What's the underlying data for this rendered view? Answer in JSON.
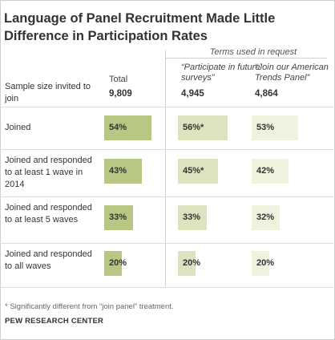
{
  "title": "Language of Panel Recruitment Made Little Difference in Participation Rates",
  "group_header": "Terms used in request",
  "col_total": "Total",
  "col_participate": "“Participate in future surveys”",
  "col_join": "“Join our American Trends Panel”",
  "sample_label": "Sample size invited to join",
  "sample": {
    "total": "9,809",
    "participate": "4,945",
    "join": "4,864"
  },
  "note": "* Significantly different from “join panel” treatment.",
  "source": "PEW RESEARCH CENTER",
  "colors": {
    "total": "#b8c784",
    "participate": "#dbe4be",
    "join": "#eef2de"
  },
  "chart_data": {
    "type": "bar",
    "categories": [
      "Joined",
      "Joined and responded to at least 1 wave in 2014",
      "Joined and responded to at least 5 waves",
      "Joined and responded to all waves"
    ],
    "series": [
      {
        "name": "Total",
        "values": [
          54,
          43,
          33,
          20
        ],
        "labels": [
          "54%",
          "43%",
          "33%",
          "20%"
        ]
      },
      {
        "name": "“Participate in future surveys”",
        "values": [
          56,
          45,
          33,
          20
        ],
        "labels": [
          "56%*",
          "45%*",
          "33%",
          "20%"
        ]
      },
      {
        "name": "“Join our American Trends Panel”",
        "values": [
          53,
          42,
          32,
          20
        ],
        "labels": [
          "53%",
          "42%",
          "32%",
          "20%"
        ]
      }
    ]
  }
}
